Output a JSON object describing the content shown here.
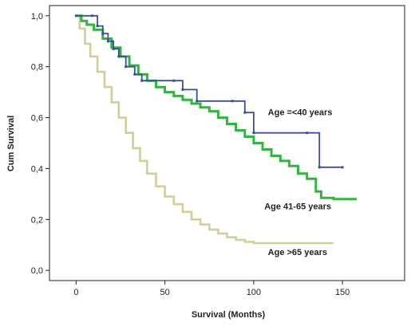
{
  "chart_data": {
    "type": "line",
    "xlabel": "Survival (Months)",
    "ylabel": "Cum Survival",
    "xlim": [
      -15,
      185
    ],
    "ylim": [
      -0.04,
      1.04
    ],
    "xticks": [
      0,
      50,
      100,
      150
    ],
    "yticks": [
      0.0,
      0.2,
      0.4,
      0.6,
      0.8,
      1.0
    ],
    "xtick_labels": [
      "0",
      "50",
      "100",
      "150"
    ],
    "ytick_labels": [
      "0,0",
      "0,2",
      "0,4",
      "0,6",
      "0,8",
      "1,0"
    ],
    "grid": false,
    "series": [
      {
        "name": "Age =<40 years",
        "color": "#3b4f9a",
        "step": true,
        "markers": true,
        "points": [
          [
            0,
            1.0
          ],
          [
            9,
            1.0
          ],
          [
            12,
            0.96
          ],
          [
            15,
            0.93
          ],
          [
            18,
            0.9
          ],
          [
            21,
            0.87
          ],
          [
            24,
            0.84
          ],
          [
            28,
            0.8
          ],
          [
            33,
            0.77
          ],
          [
            37,
            0.745
          ],
          [
            55,
            0.745
          ],
          [
            60,
            0.71
          ],
          [
            68,
            0.665
          ],
          [
            88,
            0.665
          ],
          [
            95,
            0.62
          ],
          [
            100,
            0.54
          ],
          [
            130,
            0.54
          ],
          [
            137,
            0.405
          ],
          [
            150,
            0.405
          ]
        ]
      },
      {
        "name": "Age 41-65 years",
        "color": "#2db83d",
        "step": true,
        "markers": false,
        "points": [
          [
            0,
            1.0
          ],
          [
            3,
            0.98
          ],
          [
            6,
            0.965
          ],
          [
            10,
            0.945
          ],
          [
            15,
            0.91
          ],
          [
            20,
            0.875
          ],
          [
            25,
            0.84
          ],
          [
            30,
            0.805
          ],
          [
            35,
            0.77
          ],
          [
            40,
            0.745
          ],
          [
            45,
            0.72
          ],
          [
            50,
            0.7
          ],
          [
            55,
            0.685
          ],
          [
            60,
            0.67
          ],
          [
            65,
            0.655
          ],
          [
            70,
            0.64
          ],
          [
            75,
            0.625
          ],
          [
            80,
            0.6
          ],
          [
            85,
            0.575
          ],
          [
            90,
            0.55
          ],
          [
            95,
            0.525
          ],
          [
            100,
            0.5
          ],
          [
            105,
            0.475
          ],
          [
            110,
            0.45
          ],
          [
            115,
            0.43
          ],
          [
            120,
            0.41
          ],
          [
            125,
            0.38
          ],
          [
            130,
            0.36
          ],
          [
            135,
            0.31
          ],
          [
            138,
            0.285
          ],
          [
            145,
            0.28
          ],
          [
            158,
            0.28
          ]
        ]
      },
      {
        "name": "Age >65 years",
        "color": "#cfcf9a",
        "step": true,
        "markers": false,
        "points": [
          [
            0,
            1.0
          ],
          [
            2,
            0.95
          ],
          [
            5,
            0.89
          ],
          [
            8,
            0.84
          ],
          [
            12,
            0.78
          ],
          [
            16,
            0.72
          ],
          [
            20,
            0.66
          ],
          [
            24,
            0.6
          ],
          [
            28,
            0.54
          ],
          [
            32,
            0.48
          ],
          [
            36,
            0.43
          ],
          [
            40,
            0.38
          ],
          [
            45,
            0.33
          ],
          [
            50,
            0.29
          ],
          [
            55,
            0.26
          ],
          [
            60,
            0.23
          ],
          [
            65,
            0.2
          ],
          [
            70,
            0.18
          ],
          [
            75,
            0.16
          ],
          [
            80,
            0.145
          ],
          [
            85,
            0.13
          ],
          [
            90,
            0.12
          ],
          [
            95,
            0.112
          ],
          [
            100,
            0.107
          ],
          [
            110,
            0.107
          ],
          [
            145,
            0.107
          ]
        ]
      }
    ],
    "annotations": [
      {
        "text": "Age =<40 years",
        "x": 108,
        "y": 0.61
      },
      {
        "text": "Age 41-65 years",
        "x": 106,
        "y": 0.24
      },
      {
        "text": "Age >65 years",
        "x": 108,
        "y": 0.06
      }
    ]
  }
}
